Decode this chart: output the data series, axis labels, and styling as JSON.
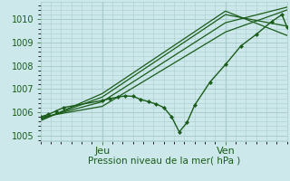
{
  "background_color": "#cce8ea",
  "grid_color": "#aacccc",
  "line_color": "#1a5c1a",
  "xlabel": "Pression niveau de la mer( hPa )",
  "xlabel_color": "#1a5c1a",
  "tick_color": "#1a5c1a",
  "ylim": [
    1004.75,
    1010.75
  ],
  "yticks": [
    1005,
    1006,
    1007,
    1008,
    1009,
    1010
  ],
  "xlim": [
    0,
    48
  ],
  "jeu_x": 12,
  "ven_x": 36,
  "series_main": {
    "x": [
      0,
      1.5,
      3,
      4.5,
      12,
      13.5,
      15,
      16.5,
      18,
      19.5,
      21,
      22.5,
      24,
      25.5,
      27,
      28.5,
      30,
      33,
      36,
      39,
      42,
      45,
      47,
      48
    ],
    "y": [
      1005.8,
      1005.9,
      1006.05,
      1006.2,
      1006.5,
      1006.58,
      1006.65,
      1006.7,
      1006.68,
      1006.55,
      1006.45,
      1006.35,
      1006.2,
      1005.8,
      1005.15,
      1005.55,
      1006.3,
      1007.3,
      1008.05,
      1008.85,
      1009.35,
      1009.9,
      1010.2,
      1009.65
    ]
  },
  "envelope_lines": [
    {
      "x": [
        0,
        12,
        36,
        48
      ],
      "y": [
        1005.78,
        1006.25,
        1009.45,
        1010.4
      ]
    },
    {
      "x": [
        0,
        12,
        36,
        48
      ],
      "y": [
        1005.73,
        1006.45,
        1009.85,
        1010.52
      ]
    },
    {
      "x": [
        0,
        12,
        36,
        48
      ],
      "y": [
        1005.68,
        1006.65,
        1010.2,
        1009.7
      ]
    },
    {
      "x": [
        0,
        12,
        36,
        48
      ],
      "y": [
        1005.63,
        1006.8,
        1010.35,
        1009.3
      ]
    }
  ]
}
